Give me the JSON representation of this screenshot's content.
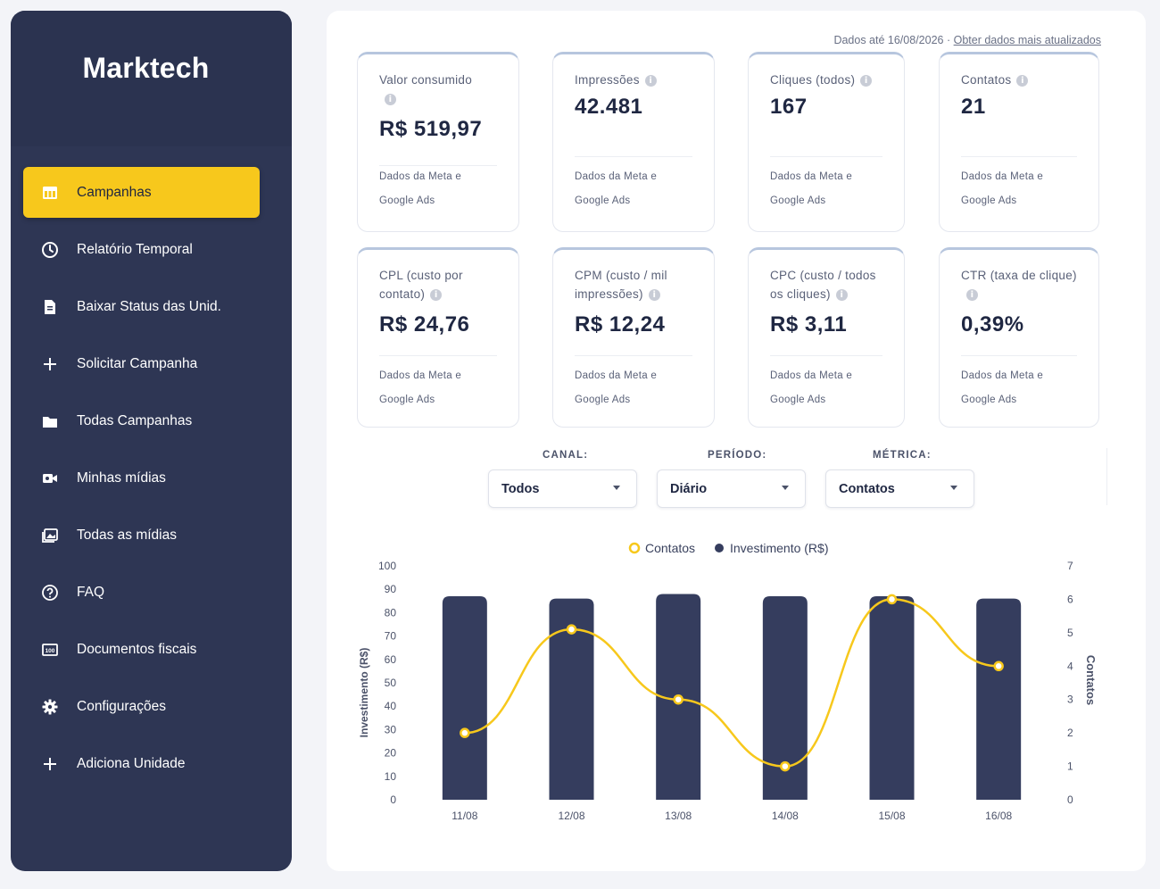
{
  "brand": {
    "logo_text": "Marktech"
  },
  "sidebar": {
    "items": [
      {
        "label": "Campanhas",
        "icon": "table-icon",
        "active": true
      },
      {
        "label": "Relatório Temporal",
        "icon": "clock-icon"
      },
      {
        "label": "Baixar Status das Unid.",
        "icon": "document-icon"
      },
      {
        "label": "Solicitar Campanha",
        "icon": "plus-icon"
      },
      {
        "label": "Todas Campanhas",
        "icon": "folder-icon"
      },
      {
        "label": "Minhas mídias",
        "icon": "video-icon"
      },
      {
        "label": "Todas as mídias",
        "icon": "images-icon"
      },
      {
        "label": "FAQ",
        "icon": "help-circle-icon"
      },
      {
        "label": "Documentos fiscais",
        "icon": "receipt-icon"
      },
      {
        "label": "Configurações",
        "icon": "gear-icon"
      },
      {
        "label": "Adiciona Unidade",
        "icon": "plus-icon"
      }
    ]
  },
  "header": {
    "data_until": "Dados até 16/08/2026",
    "separator": "·",
    "refresh_link": "Obter dados mais atualizados"
  },
  "cards": [
    {
      "label": "Valor consumido",
      "value": "R$ 519,97",
      "source_1": "Dados da Meta e",
      "source_2": "Google Ads"
    },
    {
      "label": "Impressões",
      "value": "42.481",
      "source_1": "Dados da Meta e",
      "source_2": "Google Ads"
    },
    {
      "label": "Cliques (todos)",
      "value": "167",
      "source_1": "Dados da Meta e",
      "source_2": "Google Ads"
    },
    {
      "label": "Contatos",
      "value": "21",
      "source_1": "Dados da Meta e",
      "source_2": "Google Ads"
    },
    {
      "label": "CPL (custo por contato)",
      "value": "R$ 24,76",
      "source_1": "Dados da Meta e",
      "source_2": "Google Ads"
    },
    {
      "label": "CPM (custo / mil impressões)",
      "value": "R$ 12,24",
      "source_1": "Dados da Meta e",
      "source_2": "Google Ads"
    },
    {
      "label": "CPC (custo / todos os cliques)",
      "value": "R$ 3,11",
      "source_1": "Dados da Meta e",
      "source_2": "Google Ads"
    },
    {
      "label": "CTR (taxa de clique)",
      "value": "0,39%",
      "source_1": "Dados da Meta e",
      "source_2": "Google Ads"
    }
  ],
  "filters": {
    "canal": {
      "label": "CANAL:",
      "value": "Todos"
    },
    "periodo": {
      "label": "PERÍODO:",
      "value": "Diário"
    },
    "metrica": {
      "label": "MÉTRICA:",
      "value": "Contatos"
    }
  },
  "colors": {
    "sidebar": "#2e3654",
    "accent": "#f7c81c",
    "bar": "#353d5e",
    "line": "#f7c81c"
  },
  "chart_data": {
    "type": "bar",
    "categories": [
      "11/08",
      "12/08",
      "13/08",
      "14/08",
      "15/08",
      "16/08"
    ],
    "series": [
      {
        "name": "Investimento (R$)",
        "type": "bar",
        "axis": "left",
        "values": [
          87,
          86,
          88,
          87,
          87,
          86
        ]
      },
      {
        "name": "Contatos",
        "type": "line",
        "axis": "right",
        "values": [
          2,
          5.1,
          3,
          1,
          6,
          4
        ]
      }
    ],
    "ylabel": "Investimento (R$)",
    "y2label": "Contatos",
    "ylim": [
      0,
      100
    ],
    "y2lim": [
      0,
      7
    ],
    "yticks": [
      "0",
      "10",
      "20",
      "30",
      "40",
      "50",
      "60",
      "70",
      "80",
      "90",
      "100"
    ],
    "y2ticks": [
      "0",
      "1",
      "2",
      "3",
      "4",
      "5",
      "6",
      "7"
    ],
    "legend": {
      "placement": "top-center",
      "items": [
        "Contatos",
        "Investimento (R$)"
      ]
    },
    "grid": false
  }
}
